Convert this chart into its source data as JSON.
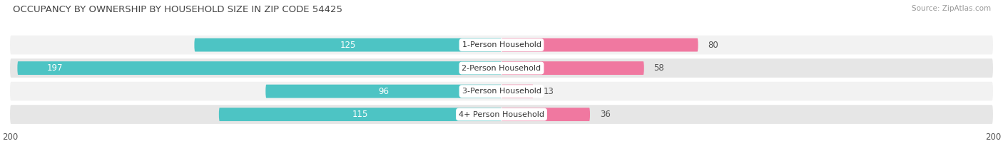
{
  "title": "OCCUPANCY BY OWNERSHIP BY HOUSEHOLD SIZE IN ZIP CODE 54425",
  "source": "Source: ZipAtlas.com",
  "categories": [
    "1-Person Household",
    "2-Person Household",
    "3-Person Household",
    "4+ Person Household"
  ],
  "owner_values": [
    125,
    197,
    96,
    115
  ],
  "renter_values": [
    80,
    58,
    13,
    36
  ],
  "owner_color": "#4DC4C4",
  "renter_color": "#F078A0",
  "row_bg_color_odd": "#f0f0f0",
  "row_bg_color_even": "#e0e0e0",
  "axis_max": 200,
  "bar_height": 0.58,
  "figsize": [
    14.06,
    2.33
  ],
  "dpi": 100,
  "title_fontsize": 9.5,
  "source_fontsize": 7.5,
  "value_fontsize": 8.5,
  "category_fontsize": 8,
  "legend_fontsize": 8.5,
  "axis_label_fontsize": 8.5
}
